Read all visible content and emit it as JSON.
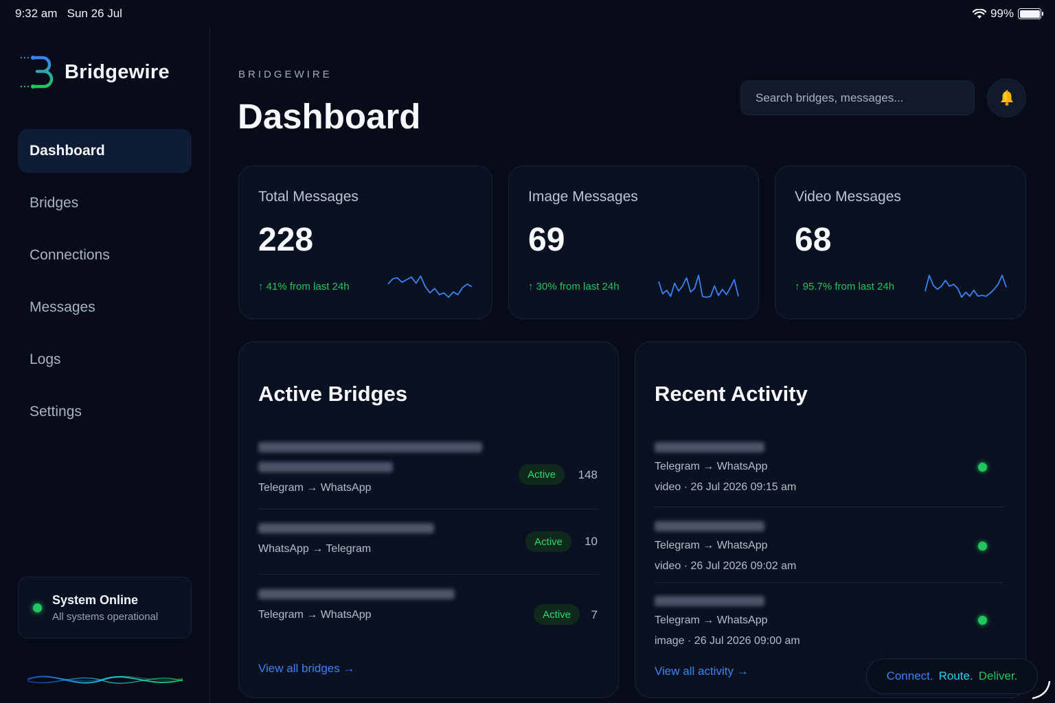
{
  "status_bar": {
    "time": "9:32 am",
    "date": "Sun 26 Jul",
    "battery": "99%"
  },
  "brand": {
    "name": "Bridgewire",
    "logo_icon": "bridgewire-logo-icon"
  },
  "sidebar": {
    "items": [
      {
        "label": "Dashboard",
        "active": true
      },
      {
        "label": "Bridges",
        "active": false
      },
      {
        "label": "Connections",
        "active": false
      },
      {
        "label": "Messages",
        "active": false
      },
      {
        "label": "Logs",
        "active": false
      },
      {
        "label": "Settings",
        "active": false
      }
    ],
    "system": {
      "title": "System Online",
      "subtitle": "All systems operational"
    }
  },
  "header": {
    "eyebrow": "BRIDGEWIRE",
    "title": "Dashboard",
    "search_placeholder": "Search bridges, messages..."
  },
  "stats": [
    {
      "label": "Total Messages",
      "value": "228",
      "trend": "↑ 41% from last 24h",
      "spark": [
        10,
        4,
        3,
        8,
        5,
        2,
        9,
        1,
        13,
        20,
        15,
        22,
        20,
        25,
        19,
        22,
        14,
        10,
        13
      ]
    },
    {
      "label": "Image Messages",
      "value": "69",
      "trend": "↑ 30% from last 24h",
      "spark": [
        7,
        21,
        17,
        24,
        9,
        18,
        12,
        3,
        19,
        15,
        0,
        24,
        25,
        24,
        12,
        23,
        16,
        22,
        14,
        5,
        24
      ]
    },
    {
      "label": "Video Messages",
      "value": "68",
      "trend": "↑ 95.7% from last 24h",
      "spark": [
        16,
        0,
        10,
        14,
        11,
        5,
        11,
        9,
        13,
        22,
        17,
        21,
        15,
        21,
        20,
        21,
        18,
        14,
        9,
        0,
        12
      ]
    }
  ],
  "bridges": {
    "title": "Active Bridges",
    "rows": [
      {
        "route": "Telegram → WhatsApp",
        "status": "Active",
        "count": "148"
      },
      {
        "route": "WhatsApp → Telegram",
        "status": "Active",
        "count": "10"
      },
      {
        "route": "Telegram → WhatsApp",
        "status": "Active",
        "count": "7"
      }
    ],
    "link": "View all bridges →"
  },
  "activity": {
    "title": "Recent Activity",
    "rows": [
      {
        "route": "Telegram → WhatsApp",
        "meta": "video · 26 Jul 2026 09:15 am"
      },
      {
        "route": "Telegram → WhatsApp",
        "meta": "video · 26 Jul 2026 09:02 am"
      },
      {
        "route": "Telegram → WhatsApp",
        "meta": "image · 26 Jul 2026 09:00 am"
      }
    ],
    "link": "View all activity →"
  },
  "tagline": {
    "part1": "Connect.",
    "part2": "Route.",
    "part3": "Deliver."
  },
  "colors": {
    "accent_blue": "#3b82f6",
    "accent_green": "#22c55e",
    "accent_cyan": "#22d3ee",
    "background": "#070c18",
    "card": "#0a1120"
  }
}
